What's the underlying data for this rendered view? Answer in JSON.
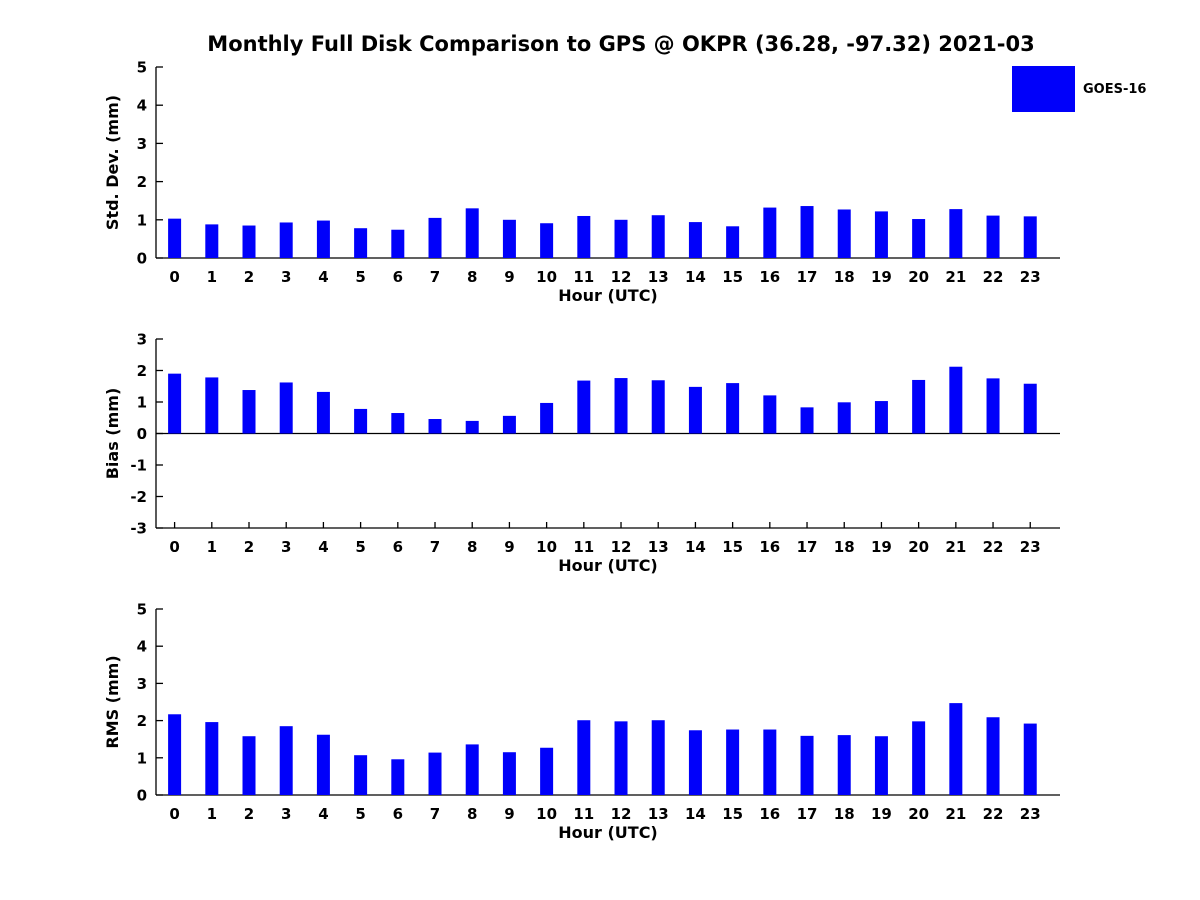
{
  "title": "Monthly Full Disk Comparison to GPS @ OKPR (36.28, -97.32) 2021-03",
  "legend": {
    "label": "GOES-16",
    "color": "#0000fa"
  },
  "colors": {
    "bar": "#0000fa",
    "axis": "#000000",
    "text": "#000000"
  },
  "chart_data": [
    {
      "type": "bar",
      "name": "std-dev",
      "title": "",
      "ylabel": "Std. Dev. (mm)",
      "xlabel": "Hour (UTC)",
      "ylim": [
        0,
        5
      ],
      "yticks": [
        0,
        1,
        2,
        3,
        4,
        5
      ],
      "legend_entries": [
        "GOES-16"
      ],
      "categories": [
        "0",
        "1",
        "2",
        "3",
        "4",
        "5",
        "6",
        "7",
        "8",
        "9",
        "10",
        "11",
        "12",
        "13",
        "14",
        "15",
        "16",
        "17",
        "18",
        "19",
        "20",
        "21",
        "22",
        "23"
      ],
      "values": [
        1.03,
        0.88,
        0.85,
        0.93,
        0.98,
        0.78,
        0.74,
        1.05,
        1.3,
        1.0,
        0.91,
        1.1,
        1.0,
        1.12,
        0.94,
        0.83,
        1.32,
        1.36,
        1.27,
        1.22,
        1.02,
        1.28,
        1.11,
        1.09
      ]
    },
    {
      "type": "bar",
      "name": "bias",
      "title": "",
      "ylabel": "Bias (mm)",
      "xlabel": "Hour (UTC)",
      "ylim": [
        -3,
        3
      ],
      "yticks": [
        -3,
        -2,
        -1,
        0,
        1,
        2,
        3
      ],
      "legend_entries": [
        "GOES-16"
      ],
      "categories": [
        "0",
        "1",
        "2",
        "3",
        "4",
        "5",
        "6",
        "7",
        "8",
        "9",
        "10",
        "11",
        "12",
        "13",
        "14",
        "15",
        "16",
        "17",
        "18",
        "19",
        "20",
        "21",
        "22",
        "23"
      ],
      "values": [
        1.9,
        1.78,
        1.38,
        1.62,
        1.32,
        0.78,
        0.65,
        0.46,
        0.4,
        0.56,
        0.97,
        1.68,
        1.76,
        1.69,
        1.48,
        1.6,
        1.21,
        0.83,
        0.99,
        1.03,
        1.7,
        2.12,
        1.75,
        1.58
      ]
    },
    {
      "type": "bar",
      "name": "rms",
      "title": "",
      "ylabel": "RMS (mm)",
      "xlabel": "Hour (UTC)",
      "ylim": [
        0,
        5
      ],
      "yticks": [
        0,
        1,
        2,
        3,
        4,
        5
      ],
      "legend_entries": [
        "GOES-16"
      ],
      "categories": [
        "0",
        "1",
        "2",
        "3",
        "4",
        "5",
        "6",
        "7",
        "8",
        "9",
        "10",
        "11",
        "12",
        "13",
        "14",
        "15",
        "16",
        "17",
        "18",
        "19",
        "20",
        "21",
        "22",
        "23"
      ],
      "values": [
        2.17,
        1.96,
        1.58,
        1.85,
        1.62,
        1.07,
        0.96,
        1.14,
        1.36,
        1.15,
        1.27,
        2.01,
        1.98,
        2.01,
        1.74,
        1.76,
        1.76,
        1.59,
        1.61,
        1.58,
        1.98,
        2.47,
        2.09,
        1.92
      ]
    }
  ]
}
